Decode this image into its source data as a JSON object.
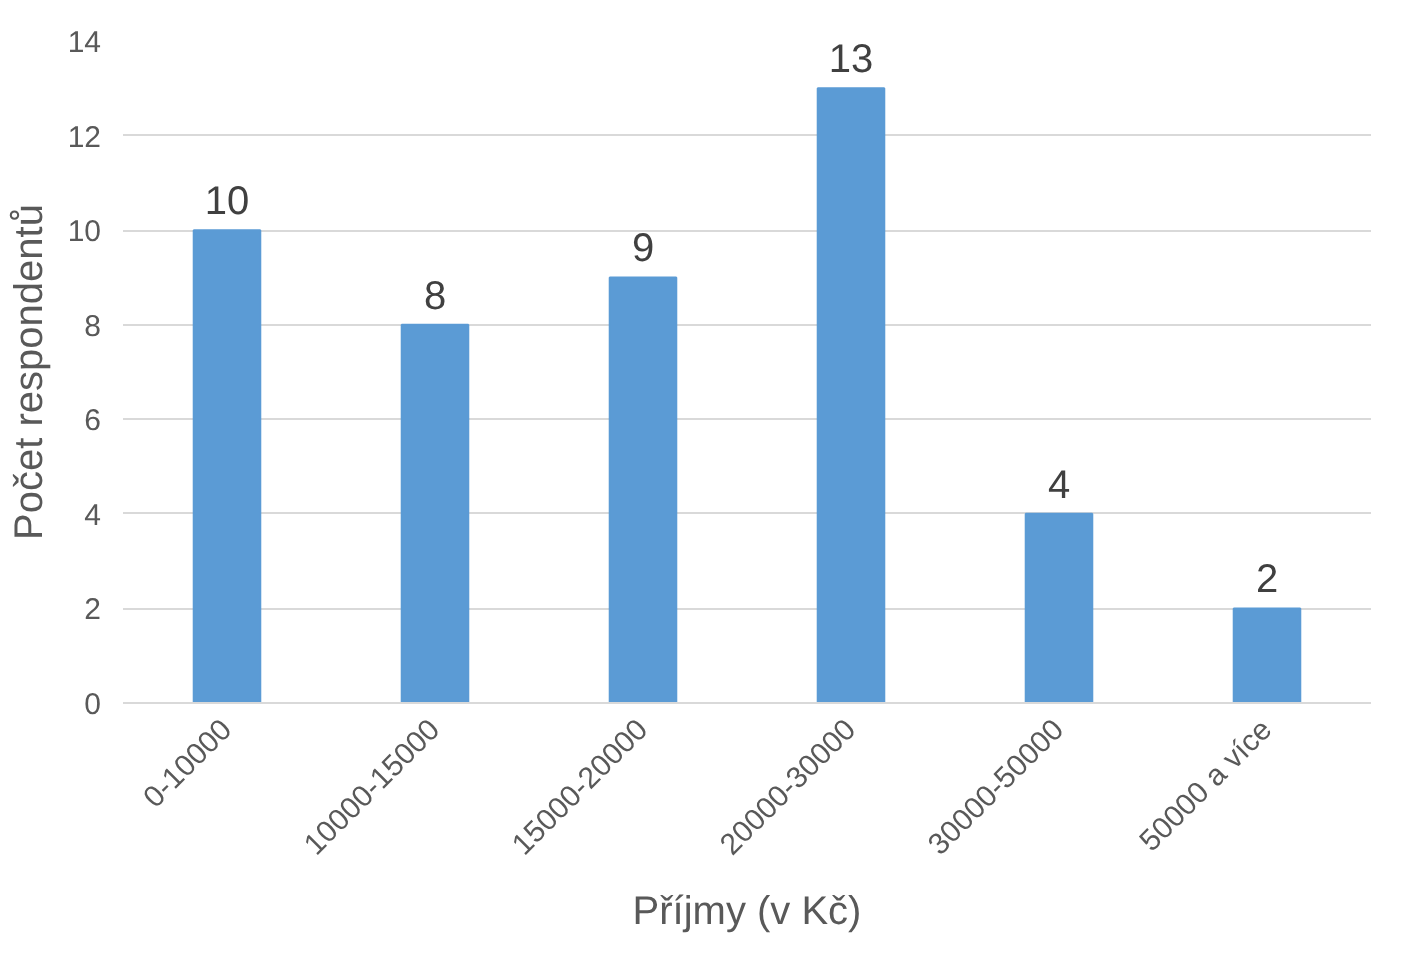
{
  "chart_data": {
    "type": "bar",
    "xlabel": "Příjmy (v Kč)",
    "ylabel": "Počet respondentů",
    "categories": [
      "0-10000",
      "10000-15000",
      "15000-20000",
      "20000-30000",
      "30000-50000",
      "50000 a více"
    ],
    "values": [
      10,
      8,
      9,
      13,
      4,
      2
    ],
    "color": "#5b9bd5",
    "ylim": [
      0,
      14
    ],
    "yticks": [
      0,
      2,
      4,
      6,
      8,
      10,
      12,
      14
    ],
    "grid": "y",
    "data_labels": true
  }
}
